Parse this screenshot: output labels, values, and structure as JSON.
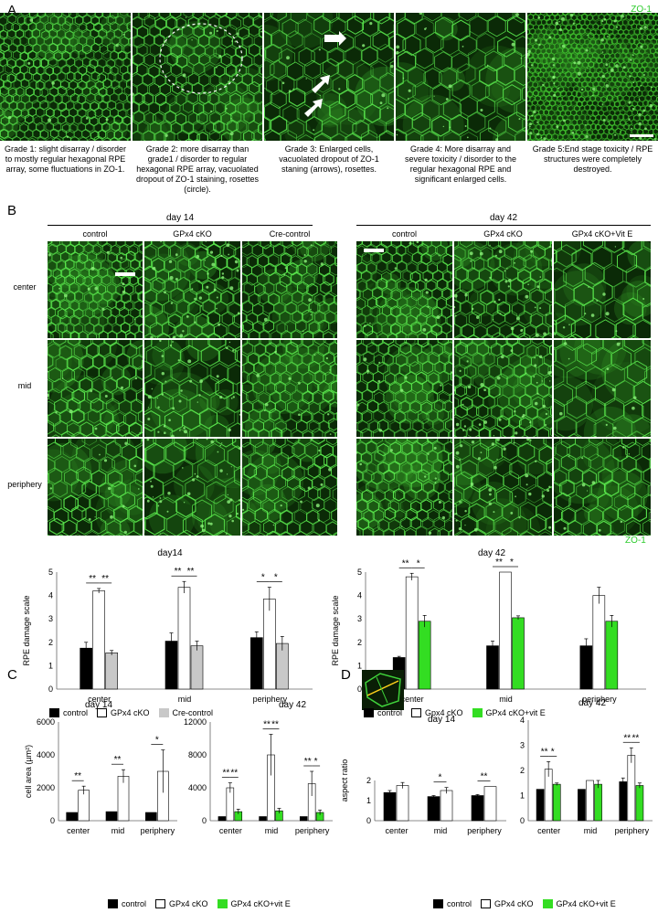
{
  "panelA": {
    "letter": "A",
    "zo1": "ZO-1",
    "captions": [
      "Grade 1: slight disarray / disorder to mostly regular hexagonal RPE array, some fluctuations in ZO-1.",
      "Grade 2: more disarray than grade1 / disorder to  regular hexagonal RPE array, vacuolated dropout of ZO-1 staining, rosettes (circle).",
      "Grade 3: Enlarged cells, vacuolated dropout of ZO-1 staning (arrows), rosettes.",
      "Grade 4: More disarray and severe toxicity / disorder to the regular hexagonal RPE and significant enlarged cells.",
      "Grade 5:End stage toxicity / RPE structures were completely destroyed."
    ]
  },
  "panelB": {
    "letter": "B",
    "day14": "day 14",
    "day42": "day 42",
    "cols14": [
      "control",
      "GPx4 cKO",
      "Cre-control"
    ],
    "cols42": [
      "control",
      "GPx4 cKO",
      "GPx4 cKO+Vit E"
    ],
    "rows": [
      "center",
      "mid",
      "periphery"
    ],
    "zo1": "ZO-1"
  },
  "panelC": {
    "letter": "C"
  },
  "panelD": {
    "letter": "D"
  },
  "chart_data": [
    {
      "id": "B-day14",
      "type": "bar",
      "title": "day14",
      "ylabel": "RPE damage scale",
      "ylim": [
        0,
        5
      ],
      "yticks": [
        0,
        1,
        2,
        3,
        4,
        5
      ],
      "categories": [
        "center",
        "mid",
        "periphery"
      ],
      "series": [
        {
          "name": "control",
          "color": "#000000",
          "values": [
            1.75,
            2.05,
            2.2
          ],
          "err": [
            0.25,
            0.35,
            0.25
          ]
        },
        {
          "name": "GPx4 cKO",
          "color": "#ffffff",
          "values": [
            4.2,
            4.35,
            3.85
          ],
          "err": [
            0.1,
            0.25,
            0.5
          ]
        },
        {
          "name": "Cre-control",
          "color": "#c8c8c8",
          "values": [
            1.55,
            1.85,
            1.95
          ],
          "err": [
            0.1,
            0.2,
            0.3
          ]
        }
      ],
      "significance": [
        [
          "**",
          "**"
        ],
        [
          "**",
          "**"
        ],
        [
          "*",
          "*"
        ]
      ]
    },
    {
      "id": "B-day42",
      "type": "bar",
      "title": "day 42",
      "ylabel": "RPE damage scale",
      "ylim": [
        0,
        5
      ],
      "yticks": [
        0,
        1,
        2,
        3,
        4,
        5
      ],
      "categories": [
        "center",
        "mid",
        "periphery"
      ],
      "series": [
        {
          "name": "control",
          "color": "#000000",
          "values": [
            1.35,
            1.85,
            1.85
          ],
          "err": [
            0.05,
            0.2,
            0.3
          ]
        },
        {
          "name": "Gpx4 cKO",
          "color": "#ffffff",
          "values": [
            4.8,
            5.0,
            4.0
          ],
          "err": [
            0.15,
            0,
            0.35
          ]
        },
        {
          "name": "GPx4 cKO+vit E",
          "color": "#33dd22",
          "values": [
            2.9,
            3.05,
            2.9
          ],
          "err": [
            0.25,
            0.08,
            0.25
          ]
        }
      ],
      "significance": [
        [
          "**",
          "*"
        ],
        [
          "**",
          "*"
        ],
        [
          "",
          ""
        ]
      ]
    },
    {
      "id": "C-day14",
      "type": "bar",
      "title": "day 14",
      "ylabel": "cell area (µm²)",
      "ylim": [
        0,
        6000
      ],
      "yticks": [
        0,
        2000,
        4000,
        6000
      ],
      "categories": [
        "center",
        "mid",
        "periphery"
      ],
      "series": [
        {
          "name": "control",
          "color": "#000000",
          "values": [
            500,
            550,
            500
          ],
          "err": [
            0,
            0,
            0
          ]
        },
        {
          "name": "GPx4 cKO",
          "color": "#ffffff",
          "values": [
            1850,
            2700,
            3000
          ],
          "err": [
            250,
            400,
            1300
          ]
        }
      ],
      "significance": [
        [
          "**"
        ],
        [
          "**"
        ],
        [
          "*"
        ]
      ]
    },
    {
      "id": "C-day42",
      "type": "bar",
      "title": "day 42",
      "ylabel": "",
      "ylim": [
        0,
        12000
      ],
      "yticks": [
        0,
        4000,
        8000,
        12000
      ],
      "categories": [
        "center",
        "mid",
        "periphery"
      ],
      "series": [
        {
          "name": "control",
          "color": "#000000",
          "values": [
            500,
            500,
            500
          ],
          "err": [
            0,
            0,
            0
          ]
        },
        {
          "name": "GPx4 cKO",
          "color": "#ffffff",
          "values": [
            4000,
            8000,
            4500
          ],
          "err": [
            600,
            2500,
            1500
          ]
        },
        {
          "name": "GPx4 cKO+vit E",
          "color": "#33dd22",
          "values": [
            1100,
            1200,
            1000
          ],
          "err": [
            300,
            300,
            300
          ]
        }
      ],
      "significance": [
        [
          "**",
          "**"
        ],
        [
          "**",
          "**"
        ],
        [
          "**",
          "*"
        ]
      ]
    },
    {
      "id": "D-day14",
      "type": "bar",
      "title": "day 14",
      "ylabel": "aspect ratio",
      "ylim": [
        0,
        4
      ],
      "yticks": [
        0,
        1,
        2
      ],
      "categories": [
        "center",
        "mid",
        "periphery"
      ],
      "series": [
        {
          "name": "control",
          "color": "#000000",
          "values": [
            1.4,
            1.2,
            1.25
          ],
          "err": [
            0.1,
            0.05,
            0.05
          ]
        },
        {
          "name": "GPx4 cKO",
          "color": "#ffffff",
          "values": [
            1.75,
            1.5,
            1.7
          ],
          "err": [
            0.15,
            0.15,
            0
          ]
        }
      ],
      "significance": [
        [
          ""
        ],
        [
          "*"
        ],
        [
          "**"
        ]
      ]
    },
    {
      "id": "D-day42",
      "type": "bar",
      "title": "day 42",
      "ylabel": "",
      "ylim": [
        0,
        4
      ],
      "yticks": [
        0,
        1,
        2,
        3,
        4
      ],
      "categories": [
        "center",
        "mid",
        "periphery"
      ],
      "series": [
        {
          "name": "control",
          "color": "#000000",
          "values": [
            1.25,
            1.25,
            1.55
          ],
          "err": [
            0,
            0,
            0.15
          ]
        },
        {
          "name": "GPx4 cKO",
          "color": "#ffffff",
          "values": [
            2.05,
            1.6,
            2.6
          ],
          "err": [
            0.3,
            0,
            0.3
          ]
        },
        {
          "name": "GPx4 cKO+vit E",
          "color": "#33dd22",
          "values": [
            1.45,
            1.45,
            1.4
          ],
          "err": [
            0.05,
            0.15,
            0.1
          ]
        }
      ],
      "significance": [
        [
          "**",
          "*"
        ],
        [
          "",
          ""
        ],
        [
          "**",
          "**"
        ]
      ]
    }
  ],
  "legends": {
    "B14": [
      "control",
      "GPx4 cKO",
      "Cre-control"
    ],
    "B42": [
      "control",
      "Gpx4 cKO",
      "GPx4 cKO+vit E"
    ],
    "C": [
      "control",
      "GPx4 cKO",
      "GPx4 cKO+vit E"
    ],
    "D": [
      "control",
      "GPx4 cKO",
      "GPx4 cKO+vit E"
    ]
  }
}
